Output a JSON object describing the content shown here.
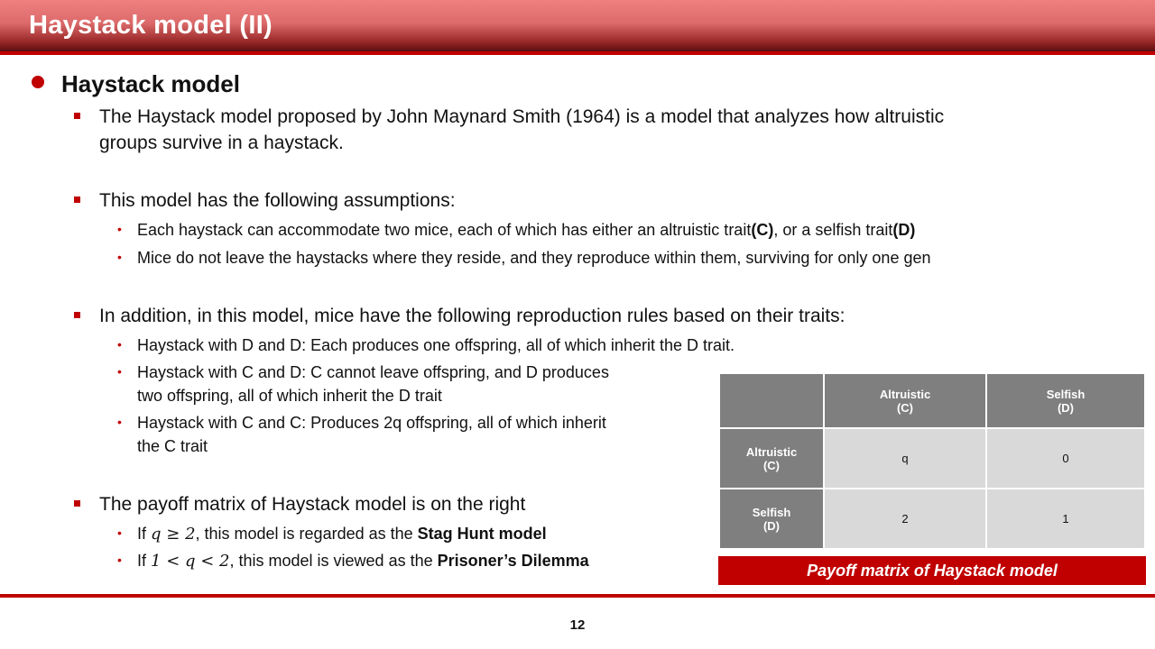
{
  "header": {
    "title": "Haystack model (II)"
  },
  "section": {
    "heading": "Haystack model"
  },
  "bullets": {
    "b1": "The Haystack model proposed by John Maynard Smith (1964) is a model that analyzes how altruistic groups survive in a haystack.",
    "b1_line1": " The Haystack model proposed by John Maynard Smith (1964) is a model that analyzes how altruistic",
    "b1_line2": "groups survive in a haystack.",
    "b2": "This model has the following assumptions:",
    "b2_sub1_pre": "Each haystack can accommodate two mice, each of which has either an altruistic trait",
    "b2_sub1_c": "(C)",
    "b2_sub1_mid": ", or a selfish trait",
    "b2_sub1_d": "(D)",
    "b2_sub2": "Mice do not leave the haystacks where they reside, and they reproduce within them, surviving for only one gen",
    "b3": "In addition, in this model, mice have the following reproduction rules based on their traits:",
    "b3_sub1": " Haystack with D and D: Each produces one offspring, all of which inherit the D trait.",
    "b3_sub2_line1": " Haystack with C and D: C cannot leave offspring, and D produces",
    "b3_sub2_line2": "two offspring, all of which inherit the D trait",
    "b3_sub3_line1": " Haystack with C and C: Produces 2q offspring, all of which inherit",
    "b3_sub3_line2": "the C trait",
    "b4": "The payoff matrix of Haystack model is on the right",
    "b4_sub1_if": "If ",
    "b4_sub1_math": "q ≥ 2",
    "b4_sub1_text": ", this model is regarded as the ",
    "b4_sub1_bold": "Stag Hunt model",
    "b4_sub2_if": "If ",
    "b4_sub2_math": "1 < q < 2",
    "b4_sub2_text": ", this model is viewed as the ",
    "b4_sub2_bold": "Prisoner’s Dilemma"
  },
  "matrix": {
    "col1": "Altruistic",
    "col1_sub": "(C)",
    "col2": "Selfish",
    "col2_sub": "(D)",
    "row1": "Altruistic",
    "row1_sub": "(C)",
    "row2": "Selfish",
    "row2_sub": "(D)",
    "r1c1": "q",
    "r1c2": "0",
    "r2c1": "2",
    "r2c2": "1",
    "caption": "Payoff matrix of Haystack model"
  },
  "footer": {
    "page_number": "12"
  },
  "colors": {
    "accent": "#c00000",
    "header_cell": "#7f7f7f",
    "body_cell": "#d9d9d9"
  }
}
